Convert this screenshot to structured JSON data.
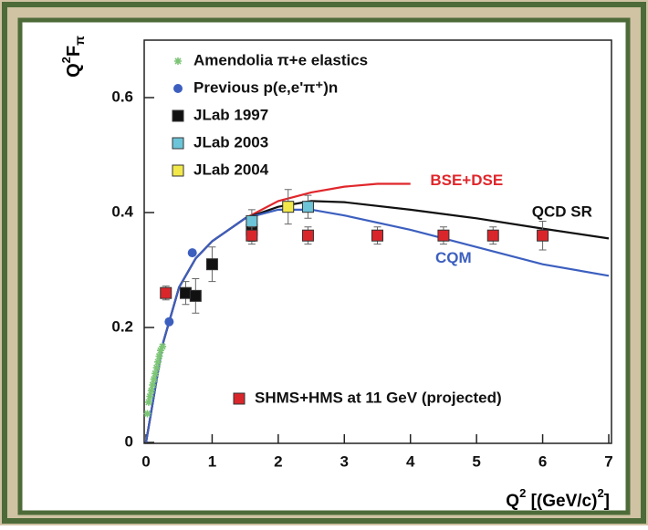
{
  "chart_data": {
    "type": "scatter",
    "y_label": [
      "Q",
      "2",
      "F",
      "π"
    ],
    "x_label": [
      "Q",
      "2",
      " [(GeV/c)",
      "2",
      "]"
    ],
    "xlim": [
      0,
      7
    ],
    "ylim": [
      0,
      0.7
    ],
    "xticks": [
      0,
      1,
      2,
      3,
      4,
      5,
      6,
      7
    ],
    "yticks": [
      0,
      0.2,
      0.4,
      0.6
    ],
    "series": [
      {
        "name": "Amendolia π+e elastics",
        "color": "#7cc576",
        "marker": "star",
        "x": [
          0.02,
          0.04,
          0.06,
          0.08,
          0.1,
          0.12,
          0.14,
          0.16,
          0.18,
          0.2,
          0.22,
          0.25
        ],
        "values": [
          0.05,
          0.07,
          0.08,
          0.09,
          0.1,
          0.11,
          0.12,
          0.13,
          0.14,
          0.15,
          0.16,
          0.167
        ]
      },
      {
        "name": "Previous p(e,e'π⁺)n",
        "color": "#3c5fbf",
        "marker": "circle",
        "x": [
          0.35,
          0.7
        ],
        "values": [
          0.21,
          0.33
        ]
      },
      {
        "name": "JLab 1997",
        "color": "#111111",
        "marker": "square",
        "x": [
          0.6,
          0.75,
          1.0,
          1.6
        ],
        "values": [
          0.26,
          0.255,
          0.31,
          0.37
        ],
        "errors": [
          0.02,
          0.03,
          0.03,
          0.02
        ]
      },
      {
        "name": "JLab 2003",
        "color": "#6cc4d8",
        "marker": "square",
        "x": [
          1.6,
          2.45
        ],
        "values": [
          0.385,
          0.41
        ],
        "errors": [
          0.02,
          0.02
        ]
      },
      {
        "name": "JLab 2004",
        "color": "#f2e84a",
        "marker": "square",
        "x": [
          2.15
        ],
        "values": [
          0.41
        ],
        "errors": [
          0.03
        ]
      },
      {
        "name": "SHMS+HMS at 11 GeV (projected)",
        "color": "#d9262b",
        "marker": "square",
        "x": [
          0.3,
          1.6,
          2.45,
          3.5,
          4.5,
          5.25,
          6.0
        ],
        "values": [
          0.26,
          0.36,
          0.36,
          0.36,
          0.36,
          0.36,
          0.36
        ],
        "errors": [
          0.012,
          0.015,
          0.015,
          0.015,
          0.015,
          0.015,
          0.025
        ]
      }
    ],
    "curves": [
      {
        "name": "BSE+DSE",
        "color": "#e0262b",
        "x": [
          0,
          0.25,
          0.5,
          0.75,
          1,
          1.5,
          2,
          2.5,
          3,
          3.5,
          4
        ],
        "values": [
          0,
          0.17,
          0.27,
          0.32,
          0.35,
          0.39,
          0.42,
          0.435,
          0.445,
          0.45,
          0.45
        ]
      },
      {
        "name": "QCD SR",
        "color": "#111111",
        "x": [
          0,
          0.25,
          0.5,
          0.75,
          1,
          1.5,
          2,
          2.5,
          3,
          4,
          5,
          6,
          7
        ],
        "values": [
          0,
          0.17,
          0.27,
          0.32,
          0.35,
          0.39,
          0.41,
          0.42,
          0.418,
          0.405,
          0.39,
          0.372,
          0.355
        ]
      },
      {
        "name": "CQM",
        "color": "#3c5fbf",
        "x": [
          0,
          0.25,
          0.5,
          0.75,
          1,
          1.5,
          2,
          2.5,
          3,
          4,
          5,
          6,
          7
        ],
        "values": [
          0,
          0.17,
          0.27,
          0.32,
          0.35,
          0.39,
          0.405,
          0.405,
          0.395,
          0.37,
          0.34,
          0.31,
          0.29
        ]
      }
    ]
  }
}
